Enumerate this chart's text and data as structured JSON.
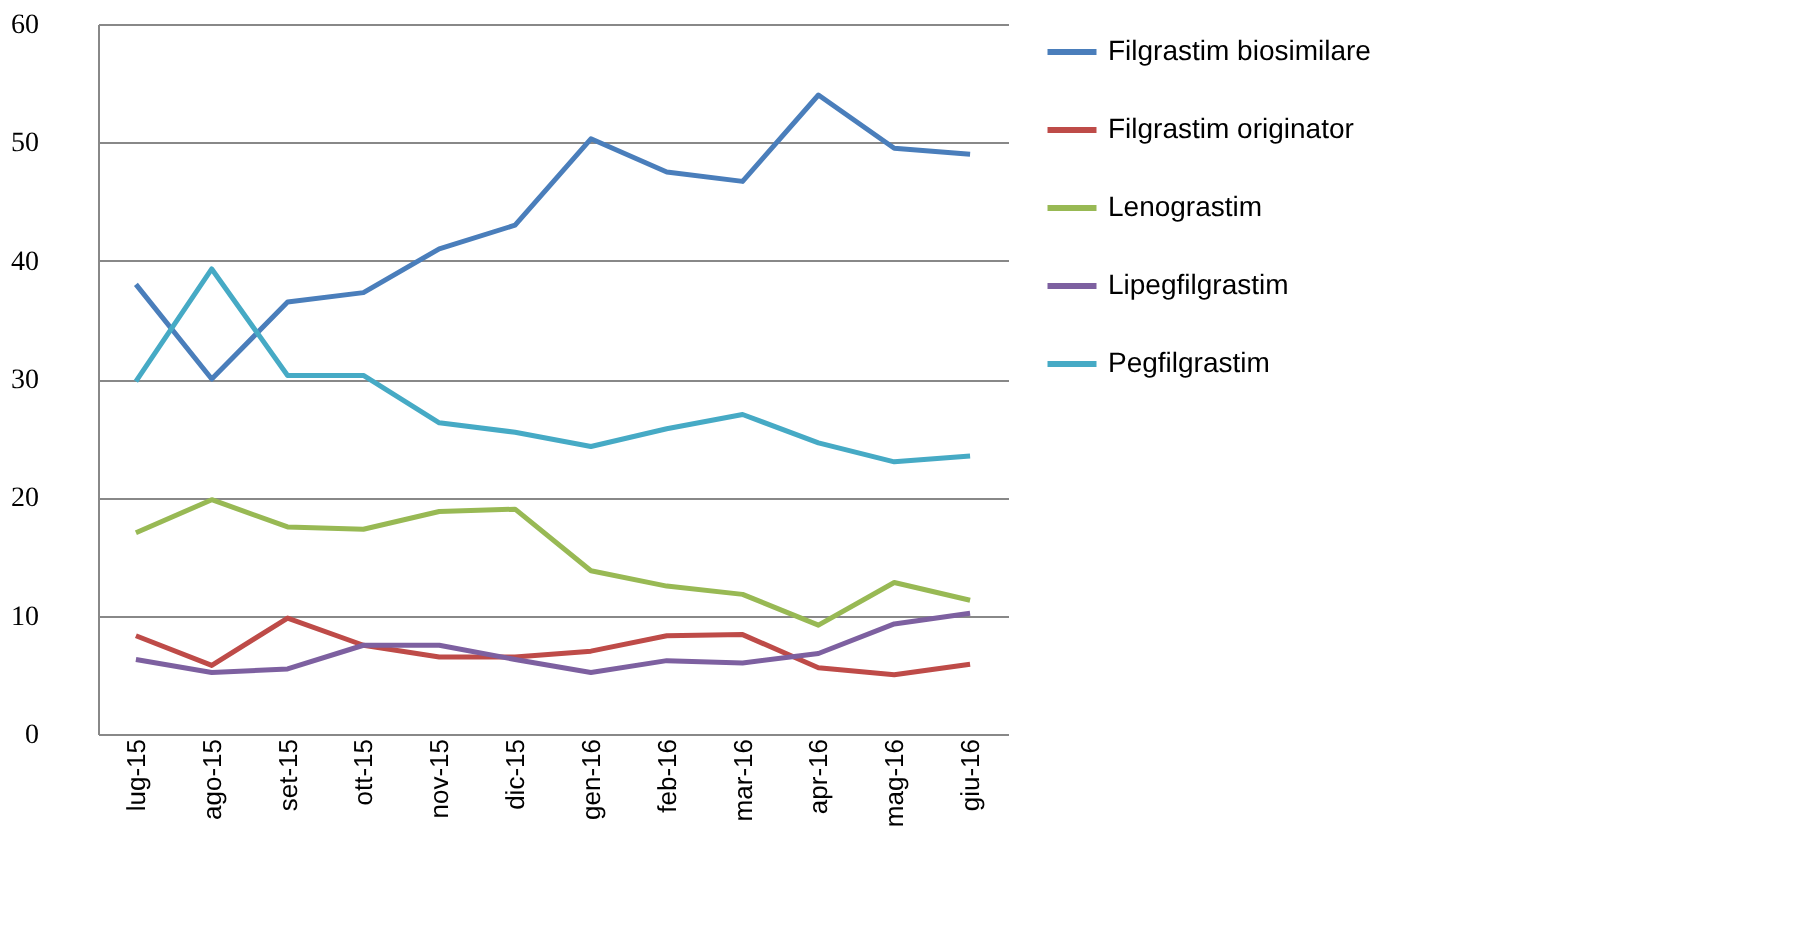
{
  "chart_data": {
    "type": "line",
    "categories": [
      "lug-15",
      "ago-15",
      "set-15",
      "ott-15",
      "nov-15",
      "dic-15",
      "gen-16",
      "feb-16",
      "mar-16",
      "apr-16",
      "mag-16",
      "giu-16"
    ],
    "series": [
      {
        "name": "Filgrastim biosimilare",
        "color": "#4a7ebb",
        "values": [
          38,
          30,
          36.5,
          37.3,
          41,
          43,
          50.3,
          47.5,
          46.7,
          54,
          49.5,
          49
        ]
      },
      {
        "name": "Filgrastim  originator",
        "color": "#be4b48",
        "values": [
          8.3,
          5.8,
          9.8,
          7.5,
          6.5,
          6.5,
          7,
          8.3,
          8.4,
          5.6,
          5,
          5.9
        ]
      },
      {
        "name": "Lenograstim",
        "color": "#98b954",
        "values": [
          17,
          19.8,
          17.5,
          17.3,
          18.8,
          19,
          13.8,
          12.5,
          11.8,
          9.2,
          12.8,
          11.3
        ]
      },
      {
        "name": "Lipegfilgrastim",
        "color": "#7d60a0",
        "values": [
          6.3,
          5.2,
          5.5,
          7.5,
          7.5,
          6.3,
          5.2,
          6.2,
          6,
          6.8,
          9.3,
          10.2
        ]
      },
      {
        "name": "Pegfilgrastim",
        "color": "#46aac5",
        "values": [
          29.8,
          39.3,
          30.3,
          30.3,
          26.3,
          25.5,
          24.3,
          25.8,
          27,
          24.6,
          23,
          23.5
        ]
      }
    ],
    "ylim": [
      0,
      60
    ],
    "yticks": [
      0,
      10,
      20,
      30,
      40,
      50,
      60
    ],
    "grid": "y",
    "legend": "right",
    "marker": "none",
    "line_style": "solid"
  }
}
